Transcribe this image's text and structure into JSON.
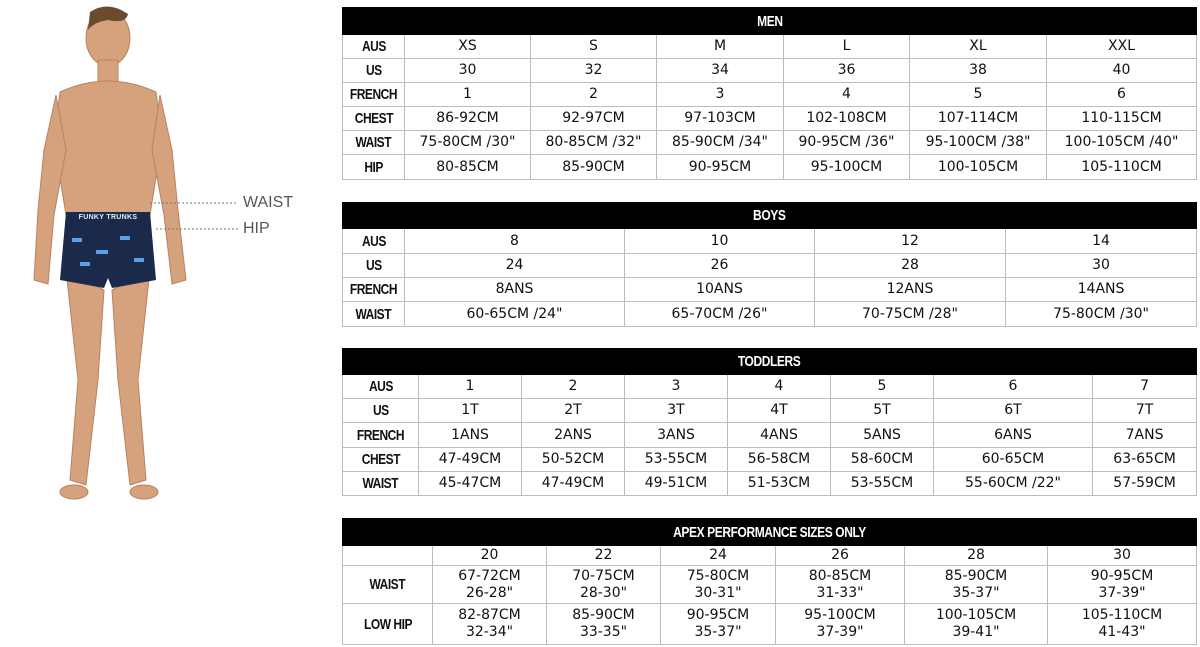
{
  "figure": {
    "waist_label": "WAIST",
    "hip_label": "HIP",
    "trunks_logo_text": "FUNKY TRUNKS"
  },
  "tables": {
    "men": {
      "title": "MEN",
      "rows": [
        {
          "label": "AUS",
          "cells": [
            "XS",
            "S",
            "M",
            "L",
            "XL",
            "XXL"
          ]
        },
        {
          "label": "US",
          "cells": [
            "30",
            "32",
            "34",
            "36",
            "38",
            "40"
          ]
        },
        {
          "label": "FRENCH",
          "cells": [
            "1",
            "2",
            "3",
            "4",
            "5",
            "6"
          ]
        },
        {
          "label": "CHEST",
          "cells": [
            "86-92CM",
            "92-97CM",
            "97-103CM",
            "102-108CM",
            "107-114CM",
            "110-115CM"
          ]
        },
        {
          "label": "WAIST",
          "cells": [
            "75-80CM /30\"",
            "80-85CM /32\"",
            "85-90CM /34\"",
            "90-95CM /36\"",
            "95-100CM /38\"",
            "100-105CM /40\""
          ]
        },
        {
          "label": "HIP",
          "cells": [
            "80-85CM",
            "85-90CM",
            "90-95CM",
            "95-100CM",
            "100-105CM",
            "105-110CM"
          ]
        }
      ]
    },
    "boys": {
      "title": "BOYS",
      "rows": [
        {
          "label": "AUS",
          "cells": [
            "8",
            "10",
            "12",
            "14"
          ]
        },
        {
          "label": "US",
          "cells": [
            "24",
            "26",
            "28",
            "30"
          ]
        },
        {
          "label": "FRENCH",
          "cells": [
            "8ANS",
            "10ANS",
            "12ANS",
            "14ANS"
          ]
        },
        {
          "label": "WAIST",
          "cells": [
            "60-65CM /24\"",
            "65-70CM /26\"",
            "70-75CM /28\"",
            "75-80CM /30\""
          ]
        }
      ]
    },
    "toddlers": {
      "title": "TODDLERS",
      "rows": [
        {
          "label": "AUS",
          "cells": [
            "1",
            "2",
            "3",
            "4",
            "5",
            "6",
            "7"
          ]
        },
        {
          "label": "US",
          "cells": [
            "1T",
            "2T",
            "3T",
            "4T",
            "5T",
            "6T",
            "7T"
          ]
        },
        {
          "label": "FRENCH",
          "cells": [
            "1ANS",
            "2ANS",
            "3ANS",
            "4ANS",
            "5ANS",
            "6ANS",
            "7ANS"
          ]
        },
        {
          "label": "CHEST",
          "cells": [
            "47-49CM",
            "50-52CM",
            "53-55CM",
            "56-58CM",
            "58-60CM",
            "60-65CM",
            "63-65CM"
          ]
        },
        {
          "label": "WAIST",
          "cells": [
            "45-47CM",
            "47-49CM",
            "49-51CM",
            "51-53CM",
            "53-55CM",
            "55-60CM /22\"",
            "57-59CM"
          ]
        }
      ]
    },
    "apex": {
      "title": "APEX PERFORMANCE SIZES ONLY",
      "rows": [
        {
          "label": "",
          "cells": [
            "20",
            "22",
            "24",
            "26",
            "28",
            "30"
          ]
        },
        {
          "label": "WAIST",
          "cells": [
            "67-72CM\n26-28\"",
            "70-75CM\n28-30\"",
            "75-80CM\n30-31\"",
            "80-85CM\n31-33\"",
            "85-90CM\n35-37\"",
            "90-95CM\n37-39\""
          ]
        },
        {
          "label": "LOW HIP",
          "cells": [
            "82-87CM\n32-34\"",
            "85-90CM\n33-35\"",
            "90-95CM\n35-37\"",
            "95-100CM\n37-39\"",
            "100-105CM\n39-41\"",
            "105-110CM\n41-43\""
          ]
        }
      ]
    }
  }
}
